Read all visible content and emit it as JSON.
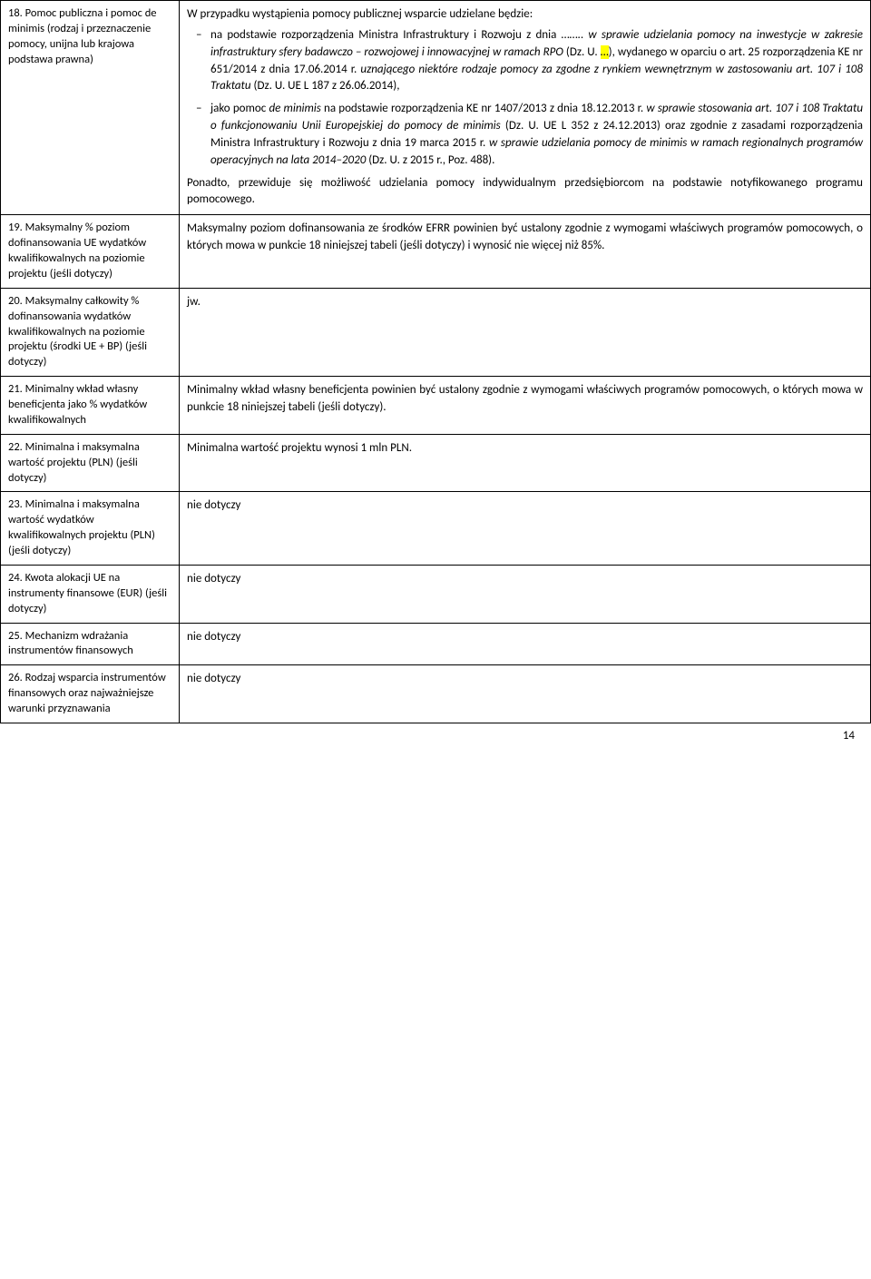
{
  "rows": [
    {
      "num": "18.",
      "label": "Pomoc publiczna i pomoc de minimis (rodzaj i przeznaczenie pomocy, unijna lub krajowa podstawa prawna)",
      "intro": "W przypadku wystąpienia pomocy publicznej wsparcie udzielane będzie:",
      "bullets": [
        {
          "pre": "na podstawie rozporządzenia Ministra Infrastruktury i Rozwoju z dnia ……..",
          "italic1": " w sprawie udzielania pomocy na inwestycje w zakresie infrastruktury sfery badawczo – rozwojowej i innowacyjnej w ramach RPO ",
          "dz": "(Dz. U. ",
          "hl": "…",
          "post_dz": "), wydanego w oparciu o art. 25 rozporządzenia KE nr 651/2014 z dnia 17.06.2014 r. ",
          "italic2": "uznającego niektóre rodzaje pomocy za zgodne z rynkiem wewnętrznym w zastosowaniu art. 107 i 108 Traktatu ",
          "tail": "(Dz. U. UE L 187 z 26.06.2014),"
        },
        {
          "pre": "jako pomoc ",
          "italic0": "de minimis",
          "mid1": " na podstawie rozporządzenia KE nr 1407/2013 z dnia 18.12.2013 r. ",
          "italic1": "w sprawie stosowania art. 107 i 108 Traktatu o funkcjonowaniu Unii Europejskiej do pomocy de minimis ",
          "mid2": "(Dz. U. UE L 352 z 24.12.2013) oraz zgodnie z zasadami rozporządzenia Ministra Infrastruktury i Rozwoju z dnia 19 marca 2015 r. ",
          "italic2": "w sprawie udzielania pomocy de minimis w ramach regionalnych programów operacyjnych na lata 2014–2020 ",
          "tail": "(Dz. U. z 2015 r., Poz. 488)."
        }
      ],
      "post": "Ponadto, przewiduje się możliwość udzielania pomocy indywidualnym przedsiębiorcom na podstawie notyfikowanego programu pomocowego."
    },
    {
      "num": "19.",
      "label": "Maksymalny % poziom dofinansowania UE wydatków kwalifikowalnych na poziomie projektu (jeśli dotyczy)",
      "content": "Maksymalny poziom dofinansowania ze środków EFRR powinien być ustalony zgodnie z wymogami właściwych programów pomocowych, o których mowa w punkcie 18 niniejszej tabeli (jeśli dotyczy) i wynosić nie więcej niż 85%."
    },
    {
      "num": "20.",
      "label": "Maksymalny całkowity % dofinansowania wydatków kwalifikowalnych na poziomie projektu (środki UE + BP) (jeśli dotyczy)",
      "content": "jw."
    },
    {
      "num": "21.",
      "label": "Minimalny wkład własny beneficjenta jako % wydatków kwalifikowalnych",
      "content": "Minimalny wkład własny beneficjenta powinien być ustalony zgodnie z wymogami właściwych programów pomocowych, o których mowa w punkcie 18 niniejszej tabeli (jeśli dotyczy)."
    },
    {
      "num": "22.",
      "label": "Minimalna i maksymalna wartość projektu (PLN) (jeśli dotyczy)",
      "content": "Minimalna wartość projektu wynosi 1 mln PLN."
    },
    {
      "num": "23.",
      "label": "Minimalna i maksymalna wartość wydatków kwalifikowalnych projektu (PLN) (jeśli dotyczy)",
      "content": "nie dotyczy"
    },
    {
      "num": "24.",
      "label": "Kwota alokacji UE na instrumenty finansowe (EUR) (jeśli dotyczy)",
      "content": "nie dotyczy"
    },
    {
      "num": "25.",
      "label": "Mechanizm wdrażania instrumentów finansowych",
      "content": "nie dotyczy"
    },
    {
      "num": "26.",
      "label": "Rodzaj wsparcia instrumentów finansowych oraz najważniejsze warunki przyznawania",
      "content": "nie dotyczy"
    }
  ],
  "page_number": "14"
}
